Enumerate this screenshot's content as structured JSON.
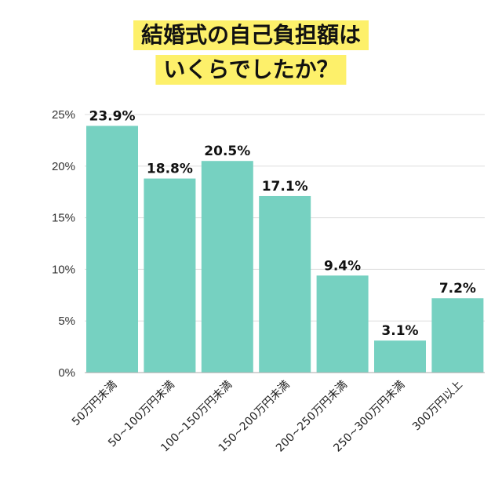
{
  "title": {
    "line1": "結婚式の自己負担額は",
    "line2": "いくらでしたか？"
  },
  "colors": {
    "bar": "#76d1c1",
    "title_bg": "#fdf06a",
    "grid": "#dddddd",
    "axis": "#aaaaaa"
  },
  "chart_data": {
    "type": "bar",
    "title": "結婚式の自己負担額は いくらでしたか？",
    "categories": [
      "50万円未満",
      "50~100万円未満",
      "100~150万円未満",
      "150~200万円未満",
      "200~250万円未満",
      "250~300万円未満",
      "300万円以上"
    ],
    "values": [
      23.9,
      18.8,
      20.5,
      17.1,
      9.4,
      3.1,
      7.2
    ],
    "value_labels": [
      "23.9%",
      "18.8%",
      "20.5%",
      "17.1%",
      "9.4%",
      "3.1%",
      "7.2%"
    ],
    "y_ticks": [
      0,
      5,
      10,
      15,
      20,
      25
    ],
    "y_tick_labels": [
      "0%",
      "5%",
      "10%",
      "15%",
      "20%",
      "25%"
    ],
    "ylim": [
      0,
      25
    ],
    "grid": true,
    "legend": "none"
  }
}
